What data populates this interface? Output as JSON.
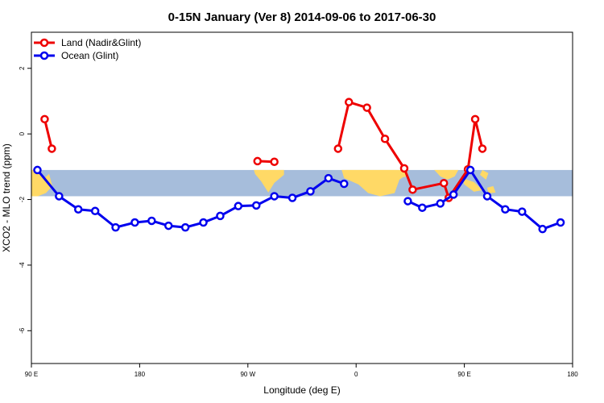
{
  "chart_data": {
    "type": "line",
    "title": "0-15N January (Ver 8)   2014-09-06 to 2017-06-30",
    "xlabel": "Longitude (deg E)",
    "ylabel": "XCO2 - MLO trend (ppm)",
    "xlim": [
      90,
      540
    ],
    "ylim": [
      -7,
      3.1
    ],
    "x_ticks": [
      {
        "value": 90,
        "label": "90 E"
      },
      {
        "value": 180,
        "label": "180"
      },
      {
        "value": 270,
        "label": "90 W"
      },
      {
        "value": 360,
        "label": "0"
      },
      {
        "value": 450,
        "label": "90 E"
      },
      {
        "value": 540,
        "label": "180"
      }
    ],
    "y_ticks": [
      {
        "value": 2,
        "label": "2"
      },
      {
        "value": 0,
        "label": "0"
      },
      {
        "value": -2,
        "label": "-2"
      },
      {
        "value": -4,
        "label": "-4"
      },
      {
        "value": -6,
        "label": "-6"
      }
    ],
    "latitude_band": {
      "y_range": [
        -1.9,
        -1.1
      ],
      "color": "#A6BDDB",
      "land_color": "#FFD966"
    },
    "series": [
      {
        "name": "Land (Nadir&Glint)",
        "color": "#EE0000",
        "segments": [
          [
            [
              101,
              0.45
            ],
            [
              107,
              -0.45
            ]
          ],
          [
            [
              278,
              -0.83
            ],
            [
              292,
              -0.85
            ]
          ],
          [
            [
              345,
              -0.45
            ],
            [
              354,
              0.97
            ],
            [
              369,
              0.8
            ],
            [
              384,
              -0.15
            ],
            [
              400,
              -1.05
            ],
            [
              407,
              -1.7
            ],
            [
              433,
              -1.5
            ],
            [
              437,
              -1.95
            ],
            [
              453,
              -1.08
            ],
            [
              459,
              0.45
            ],
            [
              465,
              -0.45
            ]
          ]
        ]
      },
      {
        "name": "Ocean (Glint)",
        "color": "#0000EE",
        "segments": [
          [
            [
              95,
              -1.1
            ],
            [
              113,
              -1.9
            ],
            [
              129,
              -2.3
            ],
            [
              143,
              -2.35
            ],
            [
              160,
              -2.85
            ],
            [
              176,
              -2.7
            ],
            [
              190,
              -2.65
            ],
            [
              204,
              -2.8
            ],
            [
              218,
              -2.85
            ],
            [
              233,
              -2.7
            ],
            [
              247,
              -2.5
            ],
            [
              262,
              -2.2
            ],
            [
              277,
              -2.18
            ],
            [
              292,
              -1.9
            ],
            [
              307,
              -1.95
            ],
            [
              322,
              -1.75
            ],
            [
              337,
              -1.35
            ],
            [
              350,
              -1.52
            ]
          ],
          [
            [
              403,
              -2.05
            ],
            [
              415,
              -2.25
            ],
            [
              430,
              -2.12
            ],
            [
              441,
              -1.85
            ],
            [
              455,
              -1.1
            ],
            [
              469,
              -1.9
            ],
            [
              484,
              -2.3
            ],
            [
              498,
              -2.37
            ],
            [
              515,
              -2.9
            ],
            [
              530,
              -2.7
            ]
          ]
        ]
      }
    ]
  }
}
